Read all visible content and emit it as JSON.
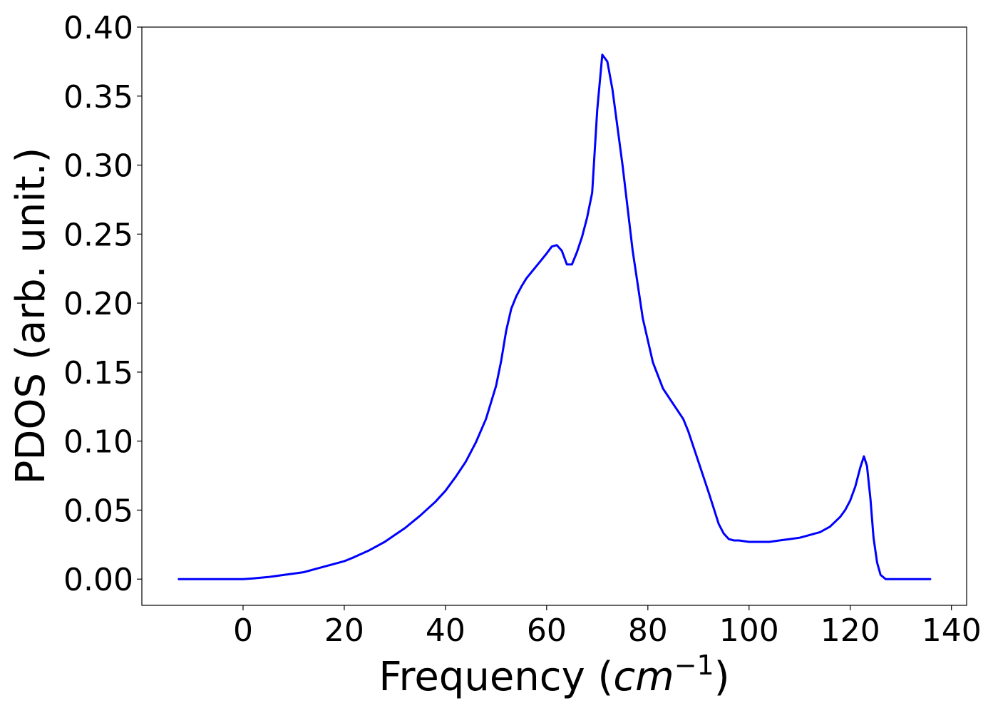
{
  "chart_data": {
    "type": "line",
    "title": "",
    "xlabel_text": "Frequency (",
    "xlabel_math": "cm",
    "xlabel_sup": "−1",
    "xlabel_close": ")",
    "ylabel": "PDOS (arb. unit.)",
    "xlim": [
      -20,
      143
    ],
    "ylim": [
      -0.019,
      0.4
    ],
    "grid": false,
    "legend": "none",
    "line_color": "#0000ff",
    "x_ticks": [
      0,
      20,
      40,
      60,
      80,
      100,
      120,
      140
    ],
    "x_tick_labels": [
      "0",
      "20",
      "40",
      "60",
      "80",
      "100",
      "120",
      "140"
    ],
    "y_ticks": [
      0.0,
      0.05,
      0.1,
      0.15,
      0.2,
      0.25,
      0.3,
      0.35,
      0.4
    ],
    "y_tick_labels": [
      "0.00",
      "0.05",
      "0.10",
      "0.15",
      "0.20",
      "0.25",
      "0.30",
      "0.35",
      "0.40"
    ],
    "series": [
      {
        "x": [
          -12.7,
          -5,
          0,
          2,
          5,
          8,
          10,
          12,
          15,
          18,
          20,
          22,
          25,
          28,
          30,
          32,
          35,
          38,
          40,
          42,
          44,
          46,
          48,
          50,
          51,
          52,
          53,
          54,
          55,
          56,
          58,
          60,
          61,
          62,
          63,
          64,
          65,
          66,
          67,
          68,
          69,
          70,
          71,
          72,
          73,
          75,
          77,
          79,
          81,
          83,
          85,
          87,
          88,
          90,
          92,
          94,
          95,
          96,
          97,
          98,
          100,
          102,
          104,
          106,
          108,
          110,
          112,
          114,
          116,
          118,
          119,
          120,
          121,
          122,
          122.7,
          123.3,
          124,
          124.6,
          125.3,
          126,
          127,
          128,
          130,
          135.8
        ],
        "y": [
          0.0,
          0.0,
          0.0,
          0.0005,
          0.0015,
          0.003,
          0.004,
          0.005,
          0.008,
          0.011,
          0.013,
          0.016,
          0.021,
          0.027,
          0.032,
          0.037,
          0.046,
          0.056,
          0.064,
          0.074,
          0.085,
          0.099,
          0.116,
          0.14,
          0.158,
          0.18,
          0.196,
          0.205,
          0.212,
          0.218,
          0.227,
          0.236,
          0.241,
          0.242,
          0.238,
          0.228,
          0.228,
          0.237,
          0.248,
          0.262,
          0.28,
          0.34,
          0.38,
          0.375,
          0.355,
          0.3,
          0.238,
          0.189,
          0.157,
          0.138,
          0.127,
          0.116,
          0.107,
          0.085,
          0.063,
          0.04,
          0.033,
          0.029,
          0.028,
          0.028,
          0.027,
          0.027,
          0.027,
          0.028,
          0.029,
          0.03,
          0.032,
          0.034,
          0.038,
          0.045,
          0.05,
          0.057,
          0.067,
          0.081,
          0.089,
          0.082,
          0.058,
          0.03,
          0.012,
          0.003,
          0.0,
          0.0,
          0.0,
          0.0
        ]
      }
    ]
  }
}
